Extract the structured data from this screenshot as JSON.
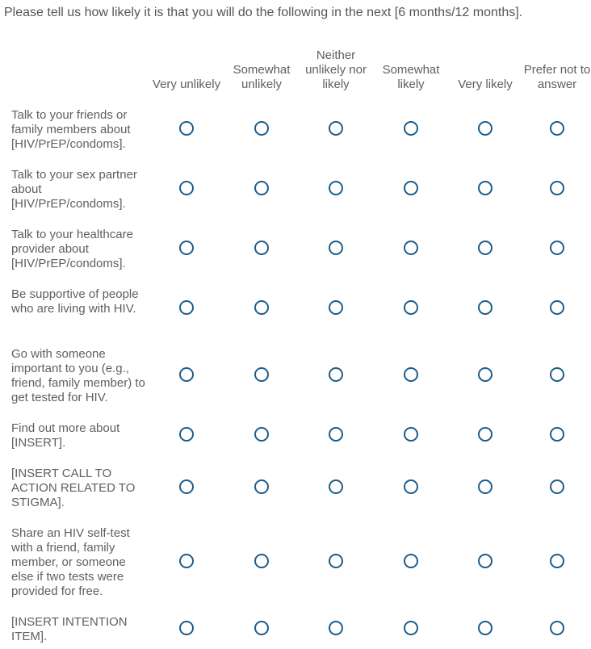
{
  "question": {
    "text": "Please tell us how likely it is that you will do the following in the next [6 months/12 months]."
  },
  "columns": [
    {
      "label": "Very unlikely"
    },
    {
      "label": "Somewhat unlikely"
    },
    {
      "label": "Neither unlikely nor likely"
    },
    {
      "label": "Somewhat likely"
    },
    {
      "label": "Very likely"
    },
    {
      "label": "Prefer not to answer"
    }
  ],
  "rows": [
    {
      "label": "Talk to your friends or family members about [HIV/PrEP/condoms]."
    },
    {
      "label": "Talk to your sex partner about [HIV/PrEP/condoms]."
    },
    {
      "label": "Talk to your healthcare provider about [HIV/PrEP/condoms]."
    },
    {
      "label": "Be supportive of people who are living with HIV."
    },
    {
      "label": "Go with someone important to you (e.g., friend, family member) to get tested for HIV."
    },
    {
      "label": "Find out more about [INSERT]."
    },
    {
      "label": "[INSERT CALL TO ACTION RELATED TO STIGMA]."
    },
    {
      "label": "Share an HIV self-test with a friend, family member, or someone else if two tests were provided for free."
    },
    {
      "label": "[INSERT INTENTION ITEM]."
    }
  ]
}
